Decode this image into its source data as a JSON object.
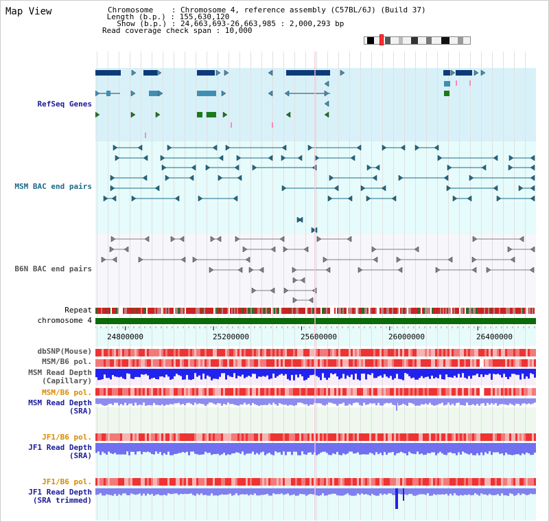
{
  "app": {
    "title": "Map View"
  },
  "header": {
    "lines": [
      "Chromosome    : Chromosome 4, reference assembly (C57BL/6J) (Build 37)",
      " Length (b.p.) : 155,630,120",
      "  Show (b.p.) : 24,663,693-26,663,985 : 2,000,293 bp",
      "Read coverage check span : 10,000"
    ]
  },
  "colors": {
    "gene_dark": "#0d3a78",
    "gene_mid": "#3f8fb3",
    "gene_green": "#1b7a1b",
    "msm_pair": "#1b6a8a",
    "b6n_pair": "#808080",
    "repeat_red": "#cc2222",
    "chrom_green": "#0b6b0b",
    "depth_blue": "#2222ee",
    "depth_light": "#8c8cf0",
    "snp_red": "#ee4444",
    "label_blue": "#1a1a9a",
    "label_teal": "#1a6a8a",
    "label_orange": "#d88a00"
  },
  "tracks": {
    "refseq": "RefSeq Genes",
    "msm_bac": "MSM BAC end pairs",
    "b6n_bac": "B6N BAC end pairs",
    "repeat": "Repeat",
    "chromosome": "chromosome 4",
    "dbsnp": "dbSNP(Mouse)",
    "msm_b6_pol_1": "MSM/B6 pol.",
    "msm_depth_cap": "MSM Read Depth\n(Capillary)",
    "msm_b6_pol_2": "MSM/B6 pol.",
    "msm_depth_sra": "MSM Read Depth\n(SRA)",
    "jf1_b6_pol_1": "JF1/B6 pol.",
    "jf1_depth_sra": "JF1 Read Depth\n(SRA)",
    "jf1_b6_pol_2": "JF1/B6 pol.",
    "jf1_depth_trim": "JF1 Read Depth\n(SRA trimmed)"
  },
  "axis": {
    "ticks": [
      "24800000",
      "25200000",
      "25600000",
      "26000000",
      "26400000"
    ],
    "tick_values": [
      24800000,
      25200000,
      25600000,
      26000000,
      26400000
    ],
    "range": [
      24663693,
      26663985
    ]
  }
}
